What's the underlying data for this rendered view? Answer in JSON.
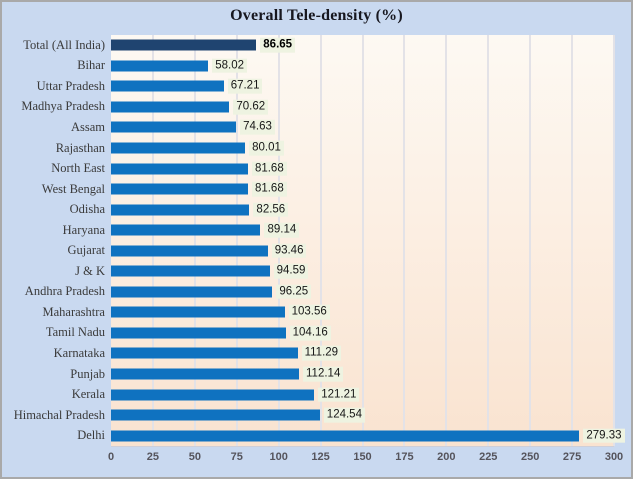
{
  "chart_data": {
    "type": "bar",
    "orientation": "horizontal",
    "title": "Overall Tele-density (%)",
    "categories": [
      "Total (All India)",
      "Bihar",
      "Uttar Pradesh",
      "Madhya Pradesh",
      "Assam",
      "Rajasthan",
      "North East",
      "West Bengal",
      "Odisha",
      "Haryana",
      "Gujarat",
      "J & K",
      "Andhra Pradesh",
      "Maharashtra",
      "Tamil Nadu",
      "Karnataka",
      "Punjab",
      "Kerala",
      "Himachal Pradesh",
      "Delhi"
    ],
    "values": [
      86.65,
      58.02,
      67.21,
      70.62,
      74.63,
      80.01,
      81.68,
      81.68,
      82.56,
      89.14,
      93.46,
      94.59,
      96.25,
      103.56,
      104.16,
      111.29,
      112.14,
      121.21,
      124.54,
      279.33
    ],
    "value_labels": [
      "86.65",
      "58.02",
      "67.21",
      "70.62",
      "74.63",
      "80.01",
      "81.68",
      "81.68",
      "82.56",
      "89.14",
      "93.46",
      "94.59",
      "96.25",
      "103.56",
      "104.16",
      "111.29",
      "112.14",
      "121.21",
      "124.54",
      "279.33"
    ],
    "emphasized_category": "Total (All India)",
    "xlabel": "",
    "ylabel": "",
    "xlim": [
      0,
      300
    ],
    "xticks": [
      0,
      25,
      50,
      75,
      100,
      125,
      150,
      175,
      200,
      225,
      250,
      275,
      300
    ],
    "grid": true,
    "legend": "none",
    "bar_color": "#0f72c0",
    "emphasis_bar_color": "#1f4470",
    "value_label_bg": "#eef3e1",
    "plot_bg_top": "#fdf9f3",
    "plot_bg_bottom": "#f9e3d0",
    "page_bg": "#c9d9f0"
  }
}
